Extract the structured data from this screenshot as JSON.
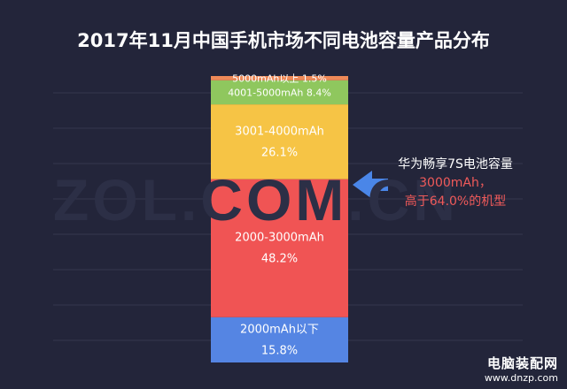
{
  "title": "2017年11月中国手机市场不同电池容量产品分布",
  "watermark": "ZOL.COM.CN",
  "corner_watermark": {
    "line1": "电脑装配网",
    "line2": "www.dnzp.com"
  },
  "annotation": {
    "line1": "华为畅享7S电池容量",
    "line2": "3000mAh，",
    "line3": "高于64.0%的机型",
    "arrow_color": "#4a86e8"
  },
  "colors": {
    "background": "#23253a",
    "grid": "#34374f"
  },
  "chart_data": {
    "type": "bar",
    "stacked": true,
    "title": "2017年11月中国手机市场不同电池容量产品分布",
    "grid": true,
    "segments": [
      {
        "name": "2000mAh以下",
        "label": "2000mAh以下",
        "pct_label": "15.8%",
        "value": 15.8,
        "color": "#5585e3"
      },
      {
        "name": "2000-3000mAh",
        "label": "2000-3000mAh",
        "pct_label": "48.2%",
        "value": 48.2,
        "color": "#f05454"
      },
      {
        "name": "3001-4000mAh",
        "label": "3001-4000mAh",
        "pct_label": "26.1%",
        "value": 26.1,
        "color": "#f6c445"
      },
      {
        "name": "4001-5000mAh",
        "label": "4001-5000mAh",
        "pct_label": "8.4%",
        "value": 8.4,
        "color": "#8fc75e"
      },
      {
        "name": "5000mAh以上",
        "label": "5000mAh以上",
        "pct_label": "1.5%",
        "value": 1.5,
        "color": "#ee8a58"
      }
    ]
  }
}
